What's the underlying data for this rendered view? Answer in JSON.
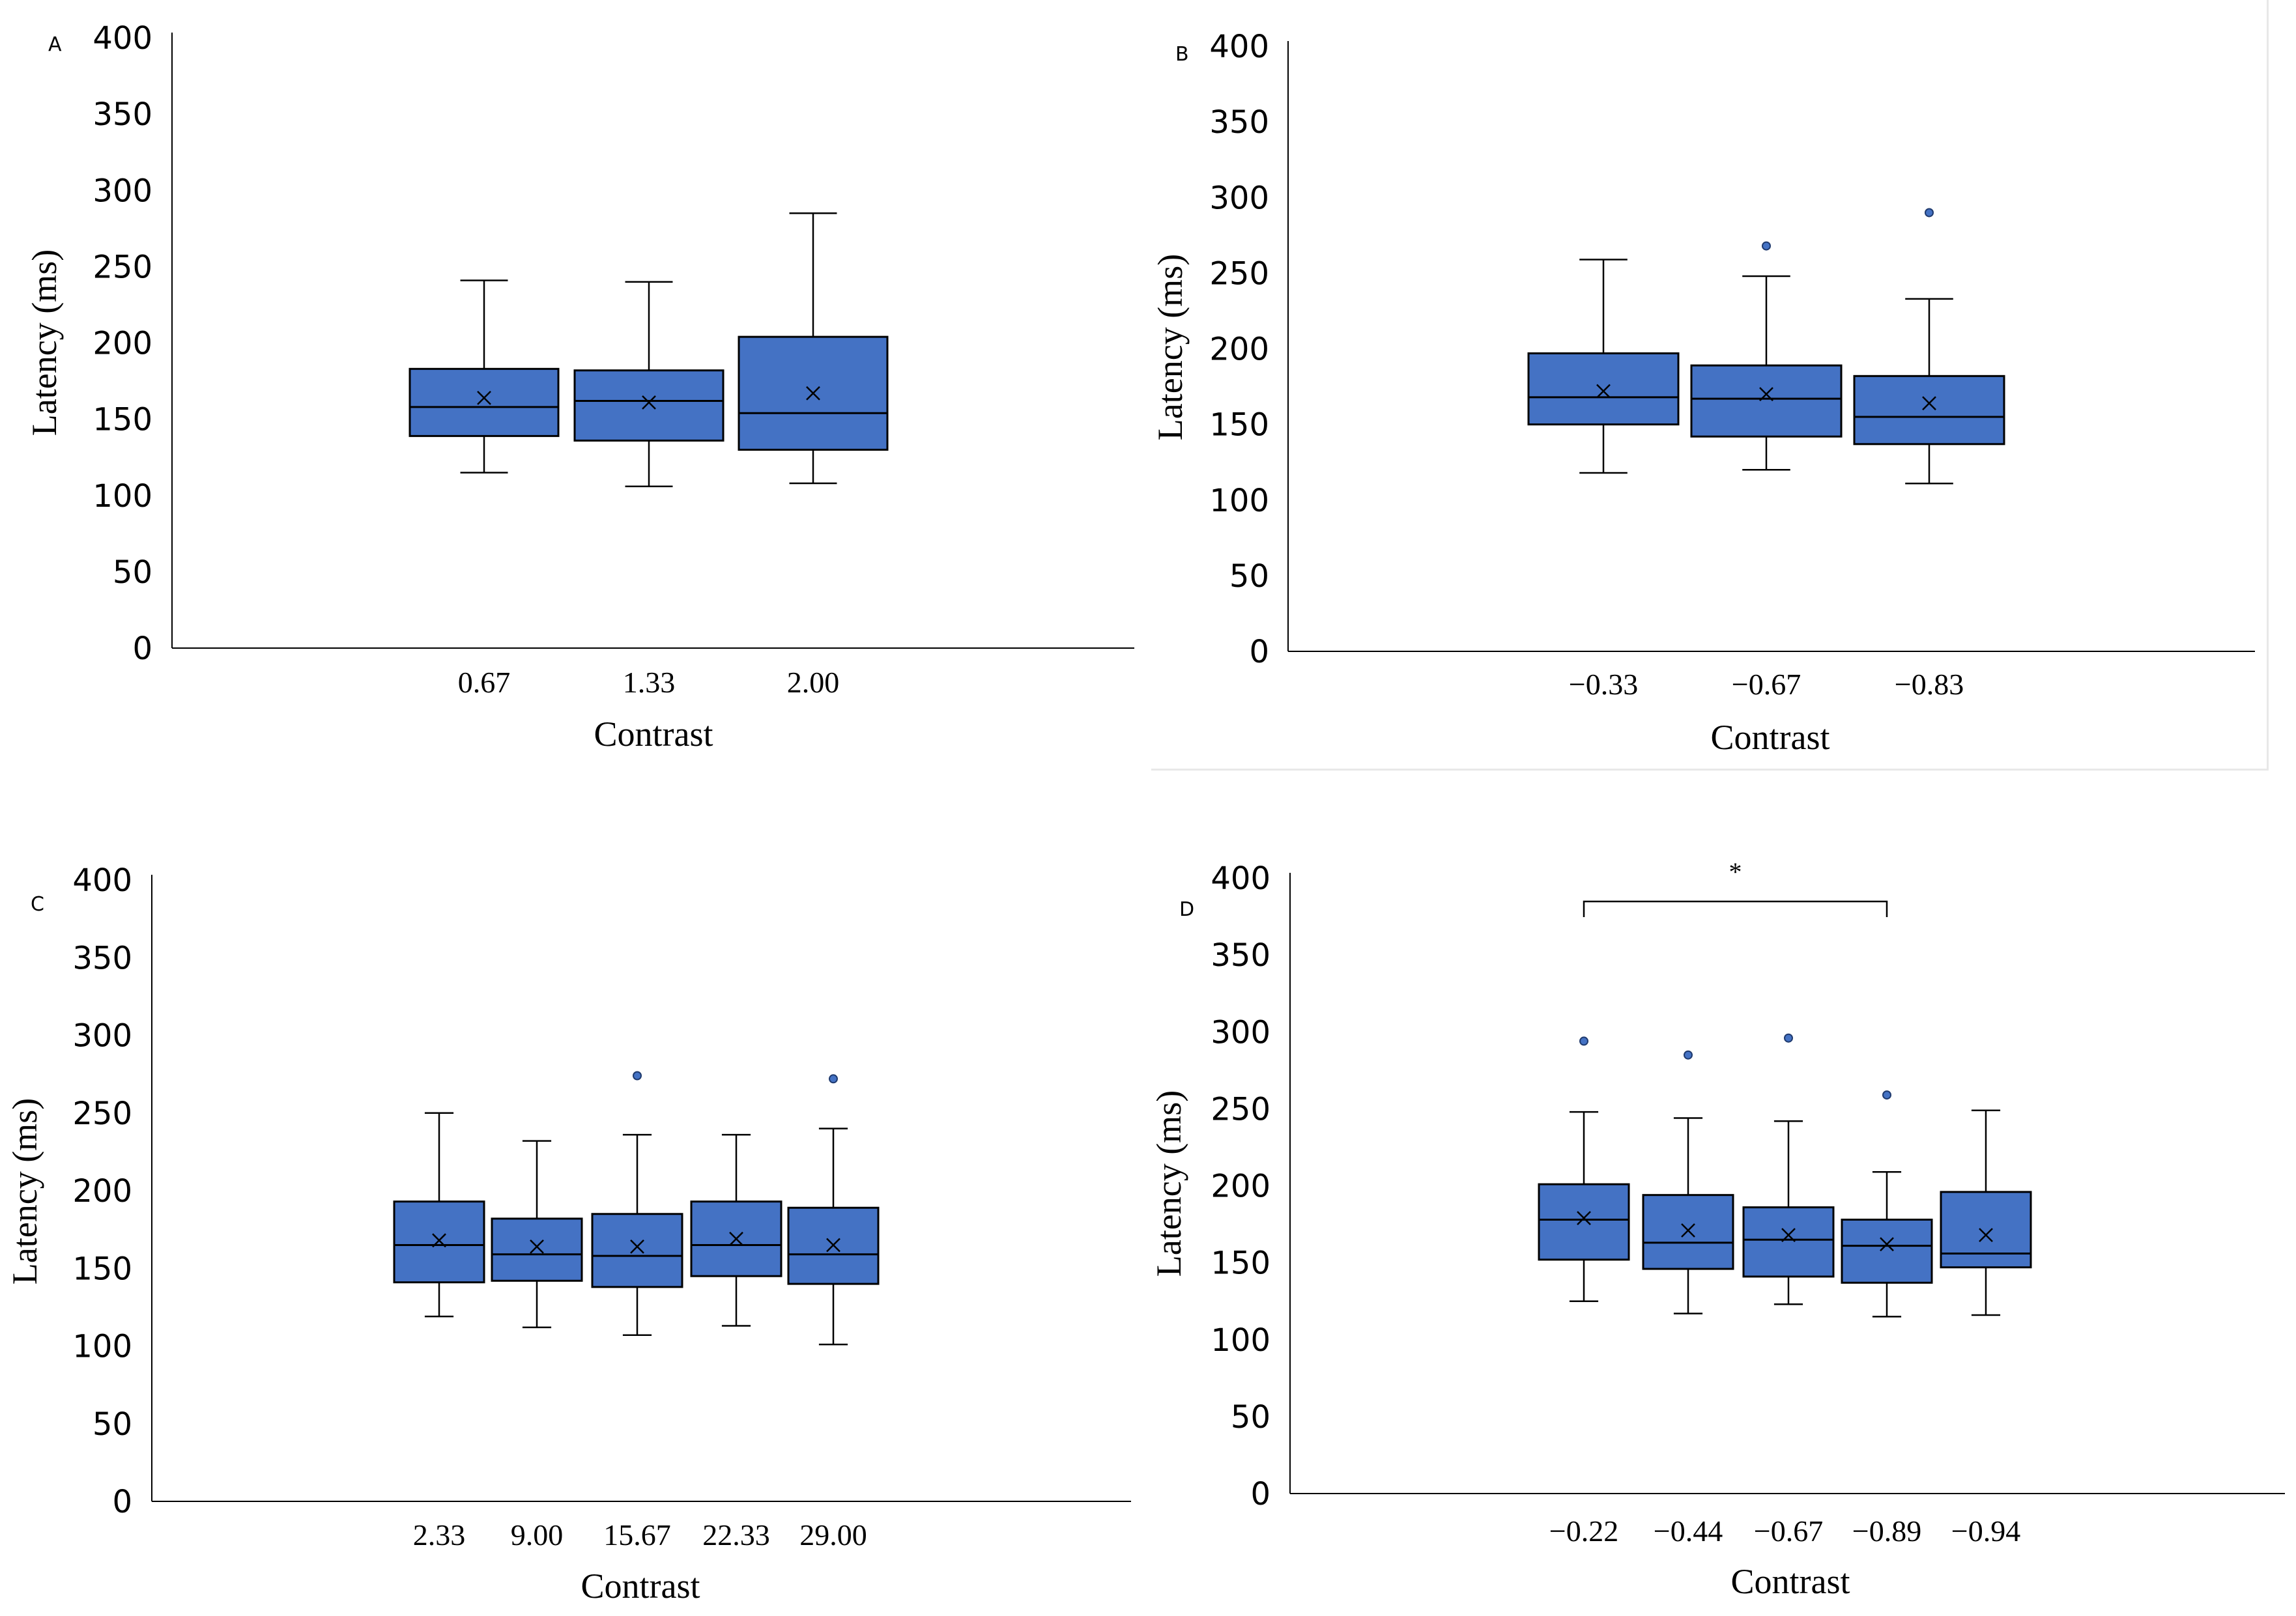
{
  "chart_data": [
    {
      "type": "box",
      "panel_label": "A",
      "ylabel": "Latency (ms)",
      "xlabel": "Contrast",
      "ylim": [
        0,
        400
      ],
      "yticks": [
        0,
        50,
        100,
        150,
        200,
        250,
        300,
        350,
        400
      ],
      "categories": [
        "0.67",
        "1.33",
        "2.00"
      ],
      "box_color": "#4472C4",
      "boxes": [
        {
          "min": 115,
          "q1": 139,
          "median": 158,
          "q3": 183,
          "max": 241,
          "mean": 164,
          "outliers": []
        },
        {
          "min": 106,
          "q1": 136,
          "median": 162,
          "q3": 182,
          "max": 240,
          "mean": 161,
          "outliers": []
        },
        {
          "min": 108,
          "q1": 130,
          "median": 154,
          "q3": 204,
          "max": 285,
          "mean": 167,
          "outliers": []
        }
      ]
    },
    {
      "type": "box",
      "panel_label": "B",
      "ylabel": "Latency (ms)",
      "xlabel": "Contrast",
      "ylim": [
        0,
        400
      ],
      "yticks": [
        0,
        50,
        100,
        150,
        200,
        250,
        300,
        350,
        400
      ],
      "categories": [
        "−0.33",
        "−0.67",
        "−0.83"
      ],
      "box_color": "#4472C4",
      "boxes": [
        {
          "min": 118,
          "q1": 150,
          "median": 168,
          "q3": 197,
          "max": 259,
          "mean": 172,
          "outliers": []
        },
        {
          "min": 120,
          "q1": 142,
          "median": 167,
          "q3": 189,
          "max": 248,
          "mean": 170,
          "outliers": [
            268
          ]
        },
        {
          "min": 111,
          "q1": 137,
          "median": 155,
          "q3": 182,
          "max": 233,
          "mean": 164,
          "outliers": [
            290
          ]
        }
      ]
    },
    {
      "type": "box",
      "panel_label": "C",
      "ylabel": "Latency (ms)",
      "xlabel": "Contrast",
      "ylim": [
        0,
        400
      ],
      "yticks": [
        0,
        50,
        100,
        150,
        200,
        250,
        300,
        350,
        400
      ],
      "categories": [
        "2.33",
        "9.00",
        "15.67",
        "22.33",
        "29.00"
      ],
      "box_color": "#4472C4",
      "boxes": [
        {
          "min": 119,
          "q1": 141,
          "median": 165,
          "q3": 193,
          "max": 250,
          "mean": 168,
          "outliers": []
        },
        {
          "min": 112,
          "q1": 142,
          "median": 159,
          "q3": 182,
          "max": 232,
          "mean": 164,
          "outliers": []
        },
        {
          "min": 107,
          "q1": 138,
          "median": 158,
          "q3": 185,
          "max": 236,
          "mean": 164,
          "outliers": [
            274
          ]
        },
        {
          "min": 113,
          "q1": 145,
          "median": 165,
          "q3": 193,
          "max": 236,
          "mean": 169,
          "outliers": []
        },
        {
          "min": 101,
          "q1": 140,
          "median": 159,
          "q3": 189,
          "max": 240,
          "mean": 165,
          "outliers": [
            272
          ]
        }
      ]
    },
    {
      "type": "box",
      "panel_label": "D",
      "ylabel": "Latency (ms)",
      "xlabel": "Contrast",
      "ylim": [
        0,
        400
      ],
      "yticks": [
        0,
        50,
        100,
        150,
        200,
        250,
        300,
        350,
        400
      ],
      "categories": [
        "−0.22",
        "−0.44",
        "−0.67",
        "−0.89",
        "−0.94"
      ],
      "box_color": "#4472C4",
      "boxes": [
        {
          "min": 125,
          "q1": 152,
          "median": 178,
          "q3": 201,
          "max": 248,
          "mean": 179,
          "outliers": [
            294
          ]
        },
        {
          "min": 117,
          "q1": 146,
          "median": 163,
          "q3": 194,
          "max": 244,
          "mean": 171,
          "outliers": [
            285
          ]
        },
        {
          "min": 123,
          "q1": 141,
          "median": 165,
          "q3": 186,
          "max": 242,
          "mean": 168,
          "outliers": [
            296
          ]
        },
        {
          "min": 115,
          "q1": 137,
          "median": 161,
          "q3": 178,
          "max": 209,
          "mean": 162,
          "outliers": [
            259
          ]
        },
        {
          "min": 116,
          "q1": 147,
          "median": 156,
          "q3": 196,
          "max": 249,
          "mean": 168,
          "outliers": []
        }
      ],
      "significance": {
        "text": "*",
        "from": 0,
        "to": 3
      }
    }
  ]
}
